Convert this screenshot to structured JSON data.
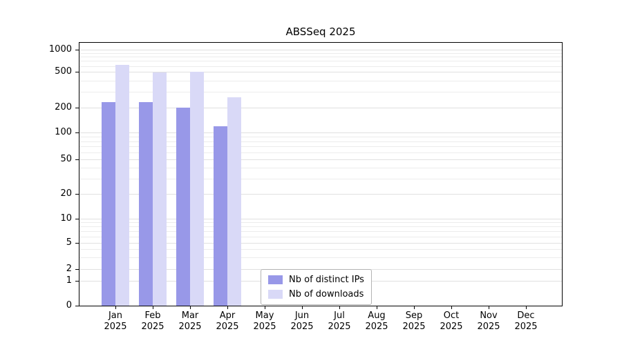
{
  "title": "ABSSeq 2025",
  "chart_data": {
    "type": "bar",
    "title": "ABSSeq 2025",
    "categories": [
      "Jan",
      "Feb",
      "Mar",
      "Apr",
      "May",
      "Jun",
      "Jul",
      "Aug",
      "Sep",
      "Oct",
      "Nov",
      "Dec"
    ],
    "category_year": "2025",
    "series": [
      {
        "name": "Nb of distinct IPs",
        "color": "#9898e8",
        "values": [
          230,
          230,
          200,
          120,
          0,
          0,
          0,
          0,
          0,
          0,
          0,
          0
        ]
      },
      {
        "name": "Nb of downloads",
        "color": "#d9d9f7",
        "values": [
          620,
          490,
          505,
          260,
          0,
          0,
          0,
          0,
          0,
          0,
          0,
          0
        ]
      }
    ],
    "yscale": "symlog",
    "yticks": [
      0,
      1,
      2,
      5,
      10,
      20,
      50,
      100,
      200,
      500,
      1000
    ],
    "ytick_labels": [
      "0",
      "1",
      "2",
      "5",
      "10",
      "20",
      "50",
      "100",
      "200",
      "500",
      "1000"
    ],
    "ylim": [
      0,
      1400
    ],
    "grid": "horizontal",
    "legend_position": "lower-center"
  }
}
